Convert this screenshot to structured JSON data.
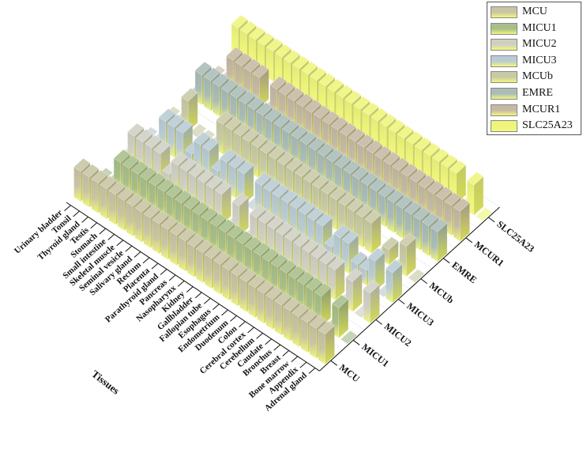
{
  "chart_data": {
    "type": "bar3d",
    "x_axis_label": "Tissues",
    "tissues": [
      "Urinary bladder",
      "Tonsil",
      "Thyroid gland",
      "Testis",
      "Stomach",
      "Small intestine",
      "Skeletal muscle",
      "Seminal vesicle",
      "Salivary gland",
      "Rectum",
      "Placenta",
      "Parathyroid gland",
      "Pancreas",
      "Nasopharynx",
      "Kidney",
      "Gallbladder",
      "Fallopian tube",
      "Esophagus",
      "Endometrium",
      "Duodenum",
      "Colon",
      "Cerebral cortex",
      "Cerebellum",
      "Caudate",
      "Bronchus",
      "Breast",
      "Bone marrow",
      "Appendix",
      "Adrenal gland"
    ],
    "genes": [
      "MCU",
      "MICU1",
      "MICU2",
      "MICU3",
      "MCUb",
      "EMRE",
      "MCUR1",
      "SLC25A23"
    ],
    "colors": {
      "MCU": "#c9c4a3",
      "MICU1": "#a8be8a",
      "MICU2": "#cfcfc4",
      "MICU3": "#b9cbd4",
      "MCUb": "#c8caa6",
      "EMRE": "#a9bcb8",
      "MCUR1": "#c6b9a3",
      "SLC25A23": "#eef57a"
    },
    "series": [
      {
        "name": "MCU",
        "values": [
          2,
          2,
          2,
          2,
          2,
          2,
          2,
          2,
          2,
          2,
          2,
          2,
          2,
          2,
          2,
          2,
          2,
          2,
          2,
          2,
          2,
          2,
          2,
          2,
          2,
          2,
          2,
          2,
          2
        ]
      },
      {
        "name": "MICU1",
        "values": [
          0,
          0,
          2,
          2,
          2,
          2,
          2,
          2,
          2,
          2,
          2,
          2,
          2,
          2,
          2,
          2,
          2,
          2,
          2,
          2,
          2,
          2,
          2,
          2,
          2,
          2,
          0,
          2,
          0
        ]
      },
      {
        "name": "MICU2",
        "values": [
          0,
          2,
          2,
          2,
          2,
          1,
          2,
          2,
          2,
          2,
          2,
          2,
          0,
          2,
          0,
          2,
          2,
          2,
          2,
          2,
          2,
          2,
          2,
          2,
          2,
          0,
          2,
          0,
          2
        ]
      },
      {
        "name": "MICU3",
        "values": [
          0,
          0,
          2,
          2,
          2,
          1,
          2,
          2,
          1,
          2,
          2,
          2,
          0,
          2,
          2,
          2,
          2,
          2,
          2,
          2,
          2,
          1,
          2,
          2,
          1,
          1,
          2,
          0,
          2
        ]
      },
      {
        "name": "MCUb",
        "values": [
          0,
          0,
          2,
          0,
          0,
          0,
          2,
          2,
          2,
          2,
          2,
          2,
          2,
          2,
          2,
          2,
          2,
          2,
          2,
          2,
          2,
          2,
          2,
          2,
          0,
          1,
          0,
          2,
          0
        ]
      },
      {
        "name": "EMRE",
        "values": [
          0,
          2,
          2,
          2,
          2,
          2,
          2,
          2,
          2,
          2,
          2,
          2,
          2,
          2,
          2,
          2,
          2,
          2,
          2,
          2,
          2,
          2,
          2,
          2,
          2,
          2,
          2,
          2,
          2
        ]
      },
      {
        "name": "MCUR1",
        "values": [
          0,
          0,
          2,
          2,
          2,
          2,
          0,
          2,
          2,
          2,
          2,
          2,
          2,
          2,
          2,
          2,
          2,
          2,
          2,
          2,
          2,
          2,
          2,
          2,
          2,
          2,
          2,
          2,
          2
        ]
      },
      {
        "name": "SLC25A23",
        "values": [
          2,
          2,
          2,
          2,
          2,
          2,
          2,
          2,
          2,
          2,
          2,
          2,
          2,
          2,
          2,
          2,
          2,
          2,
          2,
          2,
          2,
          2,
          2,
          2,
          2,
          2,
          0,
          2,
          0
        ]
      }
    ],
    "legend_position": "top-right"
  }
}
